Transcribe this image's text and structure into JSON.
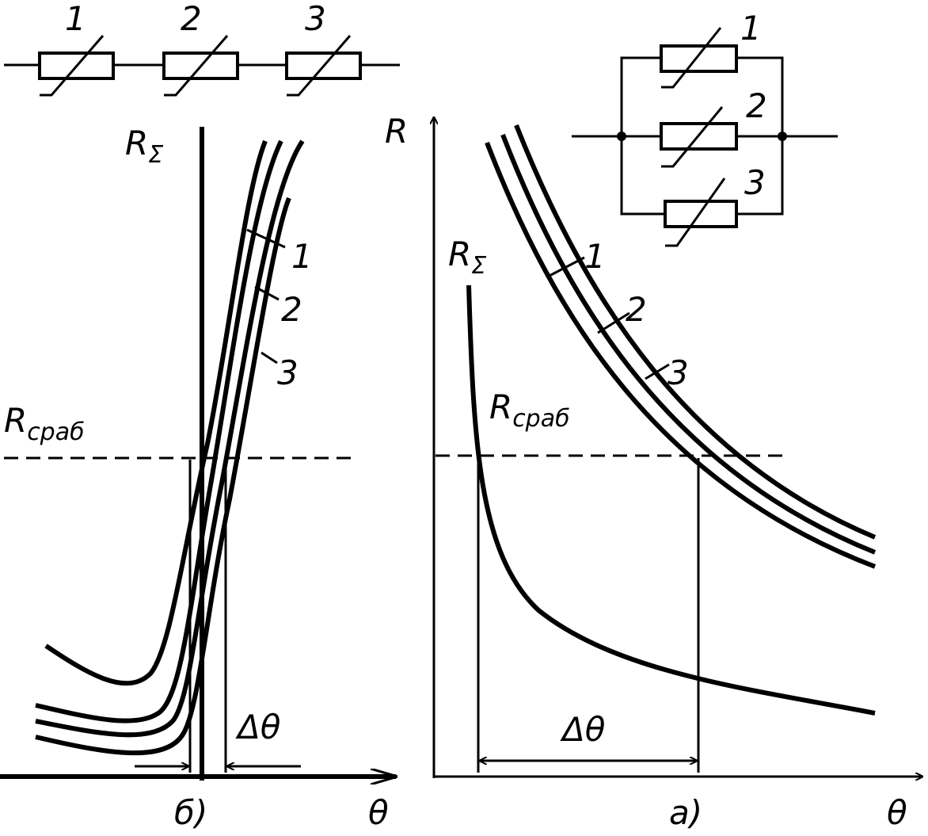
{
  "left": {
    "resistor_labels": [
      "1",
      "2",
      "3"
    ],
    "r_sum": {
      "symbol": "R",
      "subscript": "Σ"
    },
    "curve_labels": [
      "1",
      "2",
      "3"
    ],
    "r_trip": {
      "symbol": "R",
      "subscript": "сраб"
    },
    "delta": "Δθ",
    "x_axis": "θ",
    "caption": "б)"
  },
  "right": {
    "y_axis": "R",
    "resistor_labels": [
      "1",
      "2",
      "3"
    ],
    "r_sum": {
      "symbol": "R",
      "subscript": "Σ"
    },
    "curve_labels": [
      "1",
      "2",
      "3"
    ],
    "r_trip": {
      "symbol": "R",
      "subscript": "сраб"
    },
    "delta": "Δθ",
    "x_axis": "θ",
    "caption": "а)"
  }
}
